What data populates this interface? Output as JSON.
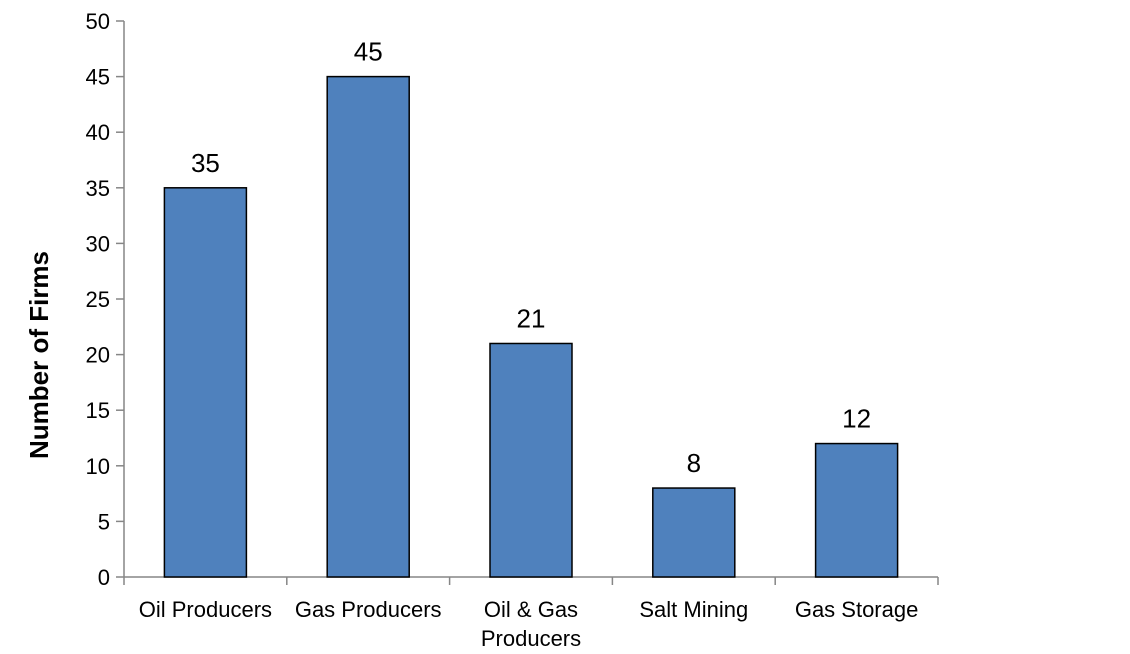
{
  "chart_data": {
    "type": "bar",
    "categories": [
      [
        "Oil Producers"
      ],
      [
        "Gas Producers"
      ],
      [
        "Oil & Gas",
        "Producers"
      ],
      [
        "Salt Mining"
      ],
      [
        "Gas Storage"
      ]
    ],
    "values": [
      35,
      45,
      21,
      8,
      12
    ],
    "title": "",
    "xlabel": "",
    "ylabel": "Number of Firms",
    "ylim": [
      0,
      50
    ],
    "yticks": [
      0,
      5,
      10,
      15,
      20,
      25,
      30,
      35,
      40,
      45,
      50
    ],
    "grid": false,
    "legend": "none",
    "colors": {
      "bar": "#4F81BD",
      "bar_edge": "#000000",
      "axis": "#868686"
    }
  }
}
